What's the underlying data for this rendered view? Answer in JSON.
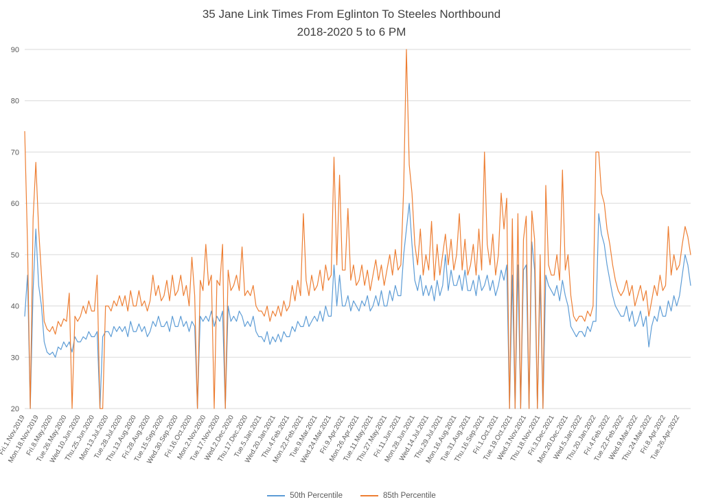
{
  "colors": {
    "series_50th": "#5B9BD5",
    "series_85th": "#ED7D31",
    "gridline": "#D9D9D9",
    "axis_text": "#595959",
    "title_text": "#404040"
  },
  "chart_data": {
    "type": "line",
    "title": "35 Jane Link Times From Eglinton To Steeles Northbound",
    "subtitle": "2018-2020 5 to 6 PM",
    "ylabel": "",
    "xlabel": "",
    "ylim": [
      20,
      90
    ],
    "yticks": [
      20,
      30,
      40,
      50,
      60,
      70,
      80,
      90
    ],
    "grid": true,
    "legend_position": "bottom",
    "points_per_tick": 5,
    "x_tick_labels": [
      "Fri.1.Nov.2019",
      "Mon.18.Nov.2019",
      "Fri.8.May.2020",
      "Tue.26.May.2020",
      "Wed.10.Jun.2020",
      "Thu.25.Jun.2020",
      "Mon.13.Jul.2020",
      "Tue.28.Jul.2020",
      "Thu.13.Aug.2020",
      "Fri.28.Aug.2020",
      "Tue.15.Sep.2020",
      "Wed.30.Sep.2020",
      "Fri.16.Oct.2020",
      "Mon.2.Nov.2020",
      "Tue.17.Nov.2020",
      "Wed.2.Dec.2020",
      "Thu.17.Dec.2020",
      "Tue.5.Jan.2021",
      "Wed.20.Jan.2021",
      "Thu.4.Feb.2021",
      "Mon.22.Feb.2021",
      "Tue.9.Mar.2021",
      "Wed.24.Mar.2021",
      "Fri.9.Apr.2021",
      "Mon.26.Apr.2021",
      "Tue.11.May.2021",
      "Thu.27.May.2021",
      "Fri.11.Jun.2021",
      "Mon.28.Jun.2021",
      "Wed.14.Jul.2021",
      "Thu.29.Jul.2021",
      "Mon.16.Aug.2021",
      "Tue.31.Aug.2021",
      "Thu.16.Sep.2021",
      "Fri.1.Oct.2021",
      "Tue.19.Oct.2021",
      "Wed.3.Nov.2021",
      "Thu.18.Nov.2021",
      "Fri.3.Dec.2021",
      "Mon.20.Dec.2021",
      "Wed.5.Jan.2022",
      "Thu.20.Jan.2022",
      "Fri.4.Feb.2022",
      "Tue.22.Feb.2022",
      "Wed.9.Mar.2022",
      "Thu.24.Mar.2022",
      "Fri.8.Apr.2022",
      "Tue.26.Apr.2022"
    ],
    "series": [
      {
        "name": "50th Percentile",
        "color": "#5B9BD5",
        "values": [
          38,
          46,
          20,
          43,
          55,
          44,
          40,
          33,
          31,
          30.5,
          31,
          30,
          32,
          31.5,
          33,
          32,
          33,
          31,
          34,
          33,
          33,
          34,
          33.5,
          35,
          34,
          34,
          35,
          20,
          34,
          35,
          35,
          34,
          36,
          35,
          36,
          35,
          36,
          34,
          37,
          35,
          35,
          36.5,
          35,
          36,
          34,
          35,
          37,
          36,
          38,
          36,
          36,
          37,
          35,
          38,
          36,
          36,
          38,
          36,
          37,
          35,
          37,
          36,
          20,
          38,
          37,
          38,
          37,
          39,
          36,
          38,
          37,
          39,
          20,
          40,
          37,
          38,
          37,
          39,
          38,
          36,
          37,
          36,
          38,
          35,
          34,
          34,
          33,
          35,
          32.5,
          34,
          33,
          34.5,
          33,
          35,
          34,
          34,
          36,
          35,
          37,
          36,
          36,
          38,
          36,
          37,
          38,
          37,
          39,
          37,
          40,
          38,
          38,
          48,
          40,
          46,
          40,
          40,
          42,
          39,
          41,
          40,
          39,
          41,
          40,
          42,
          39,
          40,
          42,
          40,
          43,
          40,
          40,
          43,
          41,
          44,
          42,
          42,
          50,
          55,
          60,
          52,
          45,
          43,
          46,
          42,
          44,
          42,
          44,
          41,
          45,
          42,
          44,
          50,
          43,
          47,
          44,
          44,
          46,
          43,
          47,
          43,
          43,
          45,
          42,
          46,
          43,
          44,
          46,
          43,
          45,
          42,
          44,
          47,
          45,
          48,
          20,
          46,
          20,
          48,
          20,
          47,
          48,
          20,
          52.5,
          47,
          20,
          45,
          20,
          46,
          44,
          43,
          42,
          44,
          41,
          45,
          42,
          40,
          36,
          35,
          34,
          35,
          35,
          34,
          36,
          35,
          37,
          37,
          58,
          54,
          52,
          48,
          45,
          42,
          40,
          39,
          38,
          38,
          40,
          37,
          39,
          36,
          37,
          39,
          36,
          38,
          32,
          36,
          38,
          37,
          40,
          38,
          38,
          41,
          39,
          42,
          40,
          42,
          46,
          50,
          48,
          44
        ]
      },
      {
        "name": "85th Percentile",
        "color": "#ED7D31",
        "values": [
          74,
          52,
          20,
          57,
          68,
          55,
          46,
          37,
          35.5,
          35,
          36,
          34.5,
          37,
          36,
          37.5,
          37,
          42.5,
          20,
          38,
          37,
          38,
          40,
          38.5,
          41,
          39,
          39,
          46,
          20,
          20,
          40,
          40,
          39,
          41,
          40,
          42,
          40,
          42,
          39,
          43,
          40,
          40,
          43,
          40,
          41,
          39,
          41,
          46,
          42,
          44,
          41,
          42,
          45,
          41,
          46,
          42,
          43,
          46,
          42,
          44,
          40,
          49.5,
          42,
          20,
          45,
          43,
          52,
          44,
          46,
          20,
          45,
          44,
          52,
          20,
          47,
          43,
          44,
          46,
          43,
          51.5,
          42,
          43,
          42,
          44,
          40,
          39,
          39,
          38,
          40,
          37,
          39,
          38,
          40,
          38,
          41,
          39,
          40,
          44,
          41,
          45,
          42,
          58,
          45,
          42,
          46,
          43,
          44,
          47,
          43,
          48,
          45,
          46,
          69,
          48,
          65.5,
          47,
          47,
          59,
          45,
          48,
          44,
          45,
          48,
          44,
          47,
          43,
          46,
          49,
          45,
          48,
          44,
          47,
          50,
          46,
          51,
          47,
          48,
          63,
          90,
          67.5,
          62,
          52,
          48,
          55,
          46,
          50,
          47,
          56.5,
          45,
          52,
          46,
          50,
          54,
          48,
          53,
          47,
          50,
          58,
          47,
          53,
          46,
          48,
          52,
          46,
          55,
          47,
          70,
          52,
          48,
          54,
          46,
          50,
          62,
          55,
          61,
          20,
          57,
          20,
          58,
          20,
          53,
          57.5,
          20,
          58.5,
          53,
          20,
          50,
          20,
          63.5,
          48,
          46,
          46,
          50,
          45,
          66.5,
          47,
          50,
          42,
          38,
          37,
          38,
          38,
          37,
          39,
          38,
          40,
          70,
          70,
          62,
          60,
          55,
          52,
          48,
          45,
          43,
          42,
          43,
          45,
          42,
          44,
          40,
          42,
          44,
          41,
          43,
          38,
          41,
          44,
          42,
          46,
          43,
          44,
          55.5,
          46,
          50,
          47,
          48,
          52,
          55.5,
          53.5,
          50
        ]
      }
    ]
  }
}
